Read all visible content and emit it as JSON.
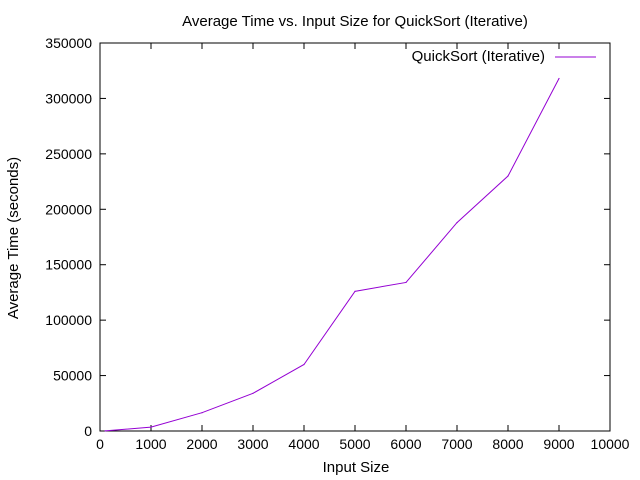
{
  "chart_data": {
    "type": "line",
    "title": "Average Time vs. Input Size for QuickSort (Iterative)",
    "xlabel": "Input Size",
    "ylabel": "Average Time (seconds)",
    "xlim": [
      0,
      10000
    ],
    "ylim": [
      0,
      350000
    ],
    "x_ticks": [
      0,
      1000,
      2000,
      3000,
      4000,
      5000,
      6000,
      7000,
      8000,
      9000,
      10000
    ],
    "y_ticks": [
      0,
      50000,
      100000,
      150000,
      200000,
      250000,
      300000,
      350000
    ],
    "grid": false,
    "legend": {
      "position": "top-right"
    },
    "series": [
      {
        "name": "QuickSort (Iterative)",
        "color": "#9400d3",
        "x": [
          100,
          1000,
          2000,
          3000,
          4000,
          5000,
          6000,
          7000,
          8000,
          9000
        ],
        "y": [
          100,
          3500,
          16500,
          34000,
          60000,
          126000,
          134000,
          188000,
          230000,
          318000
        ]
      }
    ]
  }
}
